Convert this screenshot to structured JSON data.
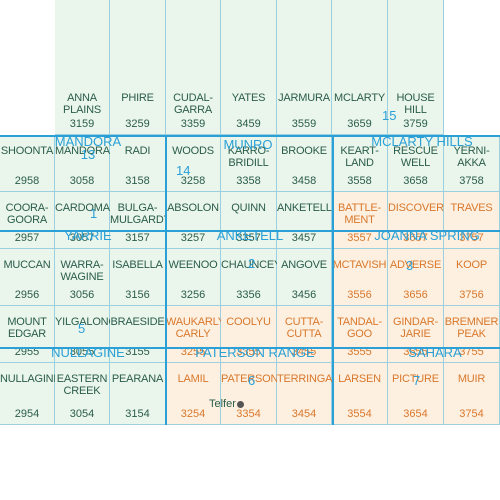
{
  "cells": [
    {
      "name": "ANNA\nPLAINS",
      "num": "3159",
      "col": 1,
      "row": 0,
      "o": false
    },
    {
      "name": "PHIRE",
      "num": "3259",
      "col": 2,
      "row": 0,
      "o": false
    },
    {
      "name": "CUDAL-\nGARRA",
      "num": "3359",
      "col": 3,
      "row": 0,
      "o": false
    },
    {
      "name": "YATES",
      "num": "3459",
      "col": 4,
      "row": 0,
      "o": false
    },
    {
      "name": "JARMURA",
      "num": "3559",
      "col": 5,
      "row": 0,
      "o": false
    },
    {
      "name": "MCLARTY",
      "num": "3659",
      "col": 6,
      "row": 0,
      "o": false
    },
    {
      "name": "HOUSE\nHILL",
      "num": "3759",
      "col": 7,
      "row": 0,
      "o": false
    },
    {
      "name": "SHOONTA",
      "num": "2958",
      "col": 0,
      "row": 1,
      "o": false
    },
    {
      "name": "MANDORA",
      "num": "3058",
      "col": 1,
      "row": 1,
      "o": false
    },
    {
      "name": "RADI",
      "num": "3158",
      "col": 2,
      "row": 1,
      "o": false
    },
    {
      "name": "WOODS",
      "num": "3258",
      "col": 3,
      "row": 1,
      "o": false
    },
    {
      "name": "KARRO-\nBRIDILL",
      "num": "3358",
      "col": 4,
      "row": 1,
      "o": false
    },
    {
      "name": "BROOKE",
      "num": "3458",
      "col": 5,
      "row": 1,
      "o": false
    },
    {
      "name": "KEART-\nLAND",
      "num": "3558",
      "col": 6,
      "row": 1,
      "o": false
    },
    {
      "name": "RESCUE\nWELL",
      "num": "3658",
      "col": 7,
      "row": 1,
      "o": false
    },
    {
      "name": "YERNI-\nAKKA",
      "num": "3758",
      "col": 8,
      "row": 1,
      "o": false
    },
    {
      "name": "COORA-\nGOORA",
      "num": "2957",
      "col": 0,
      "row": 2,
      "o": false
    },
    {
      "name": "CARDOMA",
      "num": "3057",
      "col": 1,
      "row": 2,
      "o": false
    },
    {
      "name": "BULGA-\nMULGARDY",
      "num": "3157",
      "col": 2,
      "row": 2,
      "o": false
    },
    {
      "name": "ABSOLON",
      "num": "3257",
      "col": 3,
      "row": 2,
      "o": false
    },
    {
      "name": "QUINN",
      "num": "3357",
      "col": 4,
      "row": 2,
      "o": false
    },
    {
      "name": "ANKETELL",
      "num": "3457",
      "col": 5,
      "row": 2,
      "o": false
    },
    {
      "name": "BATTLE-\nMENT",
      "num": "3557",
      "col": 6,
      "row": 2,
      "o": true
    },
    {
      "name": "DISCOVERY",
      "num": "3657",
      "col": 7,
      "row": 2,
      "o": true
    },
    {
      "name": "TRAVES",
      "num": "3757",
      "col": 8,
      "row": 2,
      "o": true
    },
    {
      "name": "MUCCAN",
      "num": "2956",
      "col": 0,
      "row": 3,
      "o": false
    },
    {
      "name": "WARRA-\nWAGINE",
      "num": "3056",
      "col": 1,
      "row": 3,
      "o": false
    },
    {
      "name": "ISABELLA",
      "num": "3156",
      "col": 2,
      "row": 3,
      "o": false
    },
    {
      "name": "WEENOO",
      "num": "3256",
      "col": 3,
      "row": 3,
      "o": false
    },
    {
      "name": "CHAUNCEY",
      "num": "3356",
      "col": 4,
      "row": 3,
      "o": false
    },
    {
      "name": "ANGOVE",
      "num": "3456",
      "col": 5,
      "row": 3,
      "o": false
    },
    {
      "name": "MCTAVISH",
      "num": "3556",
      "col": 6,
      "row": 3,
      "o": true
    },
    {
      "name": "ADVERSE",
      "num": "3656",
      "col": 7,
      "row": 3,
      "o": true
    },
    {
      "name": "KOOP",
      "num": "3756",
      "col": 8,
      "row": 3,
      "o": true
    },
    {
      "name": "MOUNT\nEDGAR",
      "num": "2955",
      "col": 0,
      "row": 4,
      "o": false
    },
    {
      "name": "YILGALONG",
      "num": "3055",
      "col": 1,
      "row": 4,
      "o": false
    },
    {
      "name": "BRAESIDE",
      "num": "3155",
      "col": 2,
      "row": 4,
      "o": false
    },
    {
      "name": "WAUKARLY-\nCARLY",
      "num": "3255",
      "col": 3,
      "row": 4,
      "o": true
    },
    {
      "name": "COOLYU",
      "num": "3355",
      "col": 4,
      "row": 4,
      "o": true
    },
    {
      "name": "CUTTA-\nCUTTA",
      "num": "3455",
      "col": 5,
      "row": 4,
      "o": true
    },
    {
      "name": "TANDAL-\nGOO",
      "num": "3555",
      "col": 6,
      "row": 4,
      "o": true
    },
    {
      "name": "GINDAR-\nJARIE",
      "num": "3655",
      "col": 7,
      "row": 4,
      "o": true
    },
    {
      "name": "BREMNER\nPEAK",
      "num": "3755",
      "col": 8,
      "row": 4,
      "o": true
    },
    {
      "name": "NULLAGINE",
      "num": "2954",
      "col": 0,
      "row": 5,
      "o": false
    },
    {
      "name": "EASTERN\nCREEK",
      "num": "3054",
      "col": 1,
      "row": 5,
      "o": false
    },
    {
      "name": "PEARANA",
      "num": "3154",
      "col": 2,
      "row": 5,
      "o": false
    },
    {
      "name": "LAMIL",
      "num": "3254",
      "col": 3,
      "row": 5,
      "o": true
    },
    {
      "name": "PATERSON",
      "num": "3354",
      "col": 4,
      "row": 5,
      "o": true
    },
    {
      "name": "TERRINGA",
      "num": "3454",
      "col": 5,
      "row": 5,
      "o": true
    },
    {
      "name": "LARSEN",
      "num": "3554",
      "col": 6,
      "row": 5,
      "o": true
    },
    {
      "name": "PICTURE",
      "num": "3654",
      "col": 7,
      "row": 5,
      "o": true
    },
    {
      "name": "MUIR",
      "num": "3754",
      "col": 8,
      "row": 5,
      "o": true
    }
  ],
  "sheets": [
    {
      "name": "MANDORA",
      "num": "13"
    },
    {
      "name": "MUNRO",
      "num": "14"
    },
    {
      "name": "MCLARTY HILLS",
      "num": "15"
    },
    {
      "name": "YARRIE",
      "num": "1"
    },
    {
      "name": "ANKETELL",
      "num": "2"
    },
    {
      "name": "JOANNA SPRING",
      "num": "3"
    },
    {
      "name": "NULLAGINE",
      "num": "5"
    },
    {
      "name": "PATERSON RANGE",
      "num": "6"
    },
    {
      "name": "SAHARA",
      "num": "7"
    }
  ],
  "town": "Telfer",
  "colors": {
    "sheet_label": "#2aa0d6",
    "green_text": "#2a5d4a",
    "orange_text": "#d9772b",
    "green_fill": "#eaf5ec",
    "orange_fill": "#fdf0e0"
  }
}
